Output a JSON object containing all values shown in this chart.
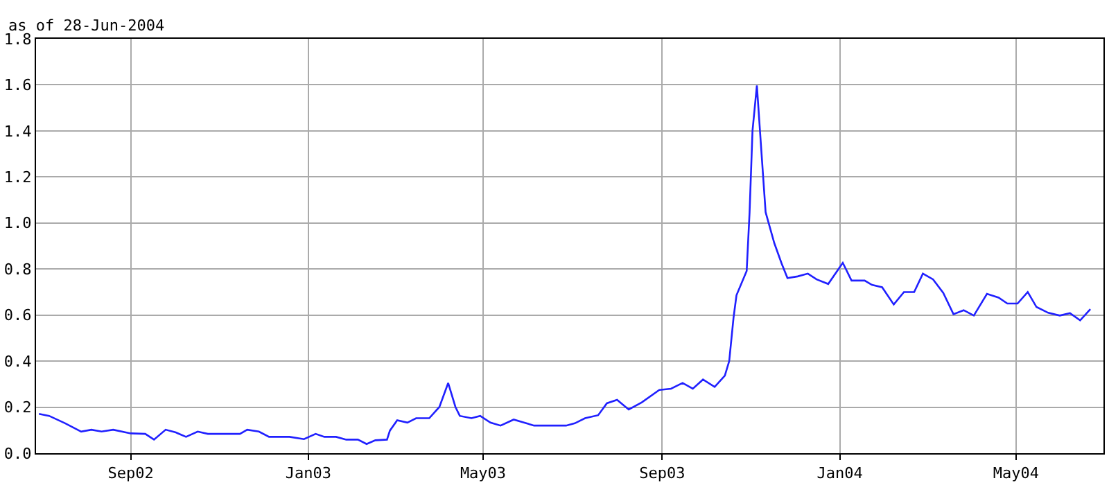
{
  "chart_data": {
    "type": "line",
    "subtitle": "as of 28-Jun-2004",
    "x": [
      "2002-06-30",
      "2002-07-07",
      "2002-07-18",
      "2002-07-29",
      "2002-08-05",
      "2002-08-12",
      "2002-08-20",
      "2002-09-01",
      "2002-09-11",
      "2002-09-17",
      "2002-09-25",
      "2002-10-02",
      "2002-10-09",
      "2002-10-17",
      "2002-10-24",
      "2002-11-15",
      "2002-11-20",
      "2002-11-28",
      "2002-12-05",
      "2002-12-19",
      "2002-12-29",
      "2003-01-06",
      "2003-01-12",
      "2003-01-20",
      "2003-01-27",
      "2003-02-04",
      "2003-02-10",
      "2003-02-16",
      "2003-02-24",
      "2003-02-26",
      "2003-03-03",
      "2003-03-10",
      "2003-03-16",
      "2003-03-25",
      "2003-04-01",
      "2003-04-07",
      "2003-04-12",
      "2003-04-15",
      "2003-04-23",
      "2003-04-29",
      "2003-05-06",
      "2003-05-13",
      "2003-05-22",
      "2003-05-29",
      "2003-06-05",
      "2003-06-27",
      "2003-07-03",
      "2003-07-10",
      "2003-07-19",
      "2003-07-25",
      "2003-08-01",
      "2003-08-09",
      "2003-08-18",
      "2003-08-30",
      "2003-09-07",
      "2003-09-15",
      "2003-09-22",
      "2003-09-29",
      "2003-10-07",
      "2003-10-14",
      "2003-10-17",
      "2003-10-20",
      "2003-10-22",
      "2003-10-29",
      "2003-10-31",
      "2003-11-02",
      "2003-11-05",
      "2003-11-08",
      "2003-11-11",
      "2003-11-17",
      "2003-11-22",
      "2003-11-26",
      "2003-12-03",
      "2003-12-10",
      "2003-12-16",
      "2003-12-24",
      "2004-01-03",
      "2004-01-09",
      "2004-01-18",
      "2004-01-23",
      "2004-01-30",
      "2004-02-07",
      "2004-02-14",
      "2004-02-21",
      "2004-02-27",
      "2004-03-05",
      "2004-03-12",
      "2004-03-19",
      "2004-03-26",
      "2004-04-02",
      "2004-04-11",
      "2004-04-19",
      "2004-04-25",
      "2004-05-02",
      "2004-05-09",
      "2004-05-15",
      "2004-05-23",
      "2004-05-31",
      "2004-06-07",
      "2004-06-14",
      "2004-06-21"
    ],
    "series": [
      {
        "color": "#2020ff",
        "values": [
          0.171,
          0.162,
          0.13,
          0.094,
          0.102,
          0.094,
          0.102,
          0.086,
          0.084,
          0.059,
          0.102,
          0.09,
          0.071,
          0.094,
          0.084,
          0.084,
          0.102,
          0.094,
          0.071,
          0.071,
          0.061,
          0.084,
          0.071,
          0.071,
          0.059,
          0.059,
          0.04,
          0.056,
          0.059,
          0.098,
          0.143,
          0.133,
          0.152,
          0.152,
          0.201,
          0.305,
          0.201,
          0.162,
          0.152,
          0.162,
          0.133,
          0.12,
          0.146,
          0.133,
          0.12,
          0.12,
          0.13,
          0.152,
          0.165,
          0.217,
          0.232,
          0.19,
          0.221,
          0.275,
          0.28,
          0.305,
          0.28,
          0.32,
          0.288,
          0.337,
          0.4,
          0.59,
          0.686,
          0.792,
          1.047,
          1.4,
          1.597,
          1.32,
          1.047,
          0.912,
          0.824,
          0.761,
          0.768,
          0.78,
          0.755,
          0.735,
          0.827,
          0.75,
          0.75,
          0.731,
          0.721,
          0.646,
          0.7,
          0.7,
          0.78,
          0.755,
          0.696,
          0.604,
          0.621,
          0.598,
          0.692,
          0.676,
          0.65,
          0.65,
          0.7,
          0.635,
          0.61,
          0.598,
          0.608,
          0.577,
          0.626
        ]
      }
    ],
    "xlim": [
      "2002-06-28",
      "2004-06-30"
    ],
    "xticks": [
      {
        "value": "2002-09-01",
        "label": "Sep02"
      },
      {
        "value": "2003-01-01",
        "label": "Jan03"
      },
      {
        "value": "2003-05-01",
        "label": "May03"
      },
      {
        "value": "2003-09-01",
        "label": "Sep03"
      },
      {
        "value": "2004-01-01",
        "label": "Jan04"
      },
      {
        "value": "2004-05-01",
        "label": "May04"
      }
    ],
    "ylim": [
      0,
      1.8
    ],
    "yticks": [
      {
        "value": 0,
        "label": "0.0"
      },
      {
        "value": 0.2,
        "label": "0.2"
      },
      {
        "value": 0.4,
        "label": "0.4"
      },
      {
        "value": 0.6,
        "label": "0.6"
      },
      {
        "value": 0.8,
        "label": "0.8"
      },
      {
        "value": 1.0,
        "label": "1.0"
      },
      {
        "value": 1.2,
        "label": "1.2"
      },
      {
        "value": 1.4,
        "label": "1.4"
      },
      {
        "value": 1.6,
        "label": "1.6"
      },
      {
        "value": 1.8,
        "label": "1.8"
      }
    ],
    "grid": true,
    "marker": "none",
    "line_style": "solid"
  }
}
